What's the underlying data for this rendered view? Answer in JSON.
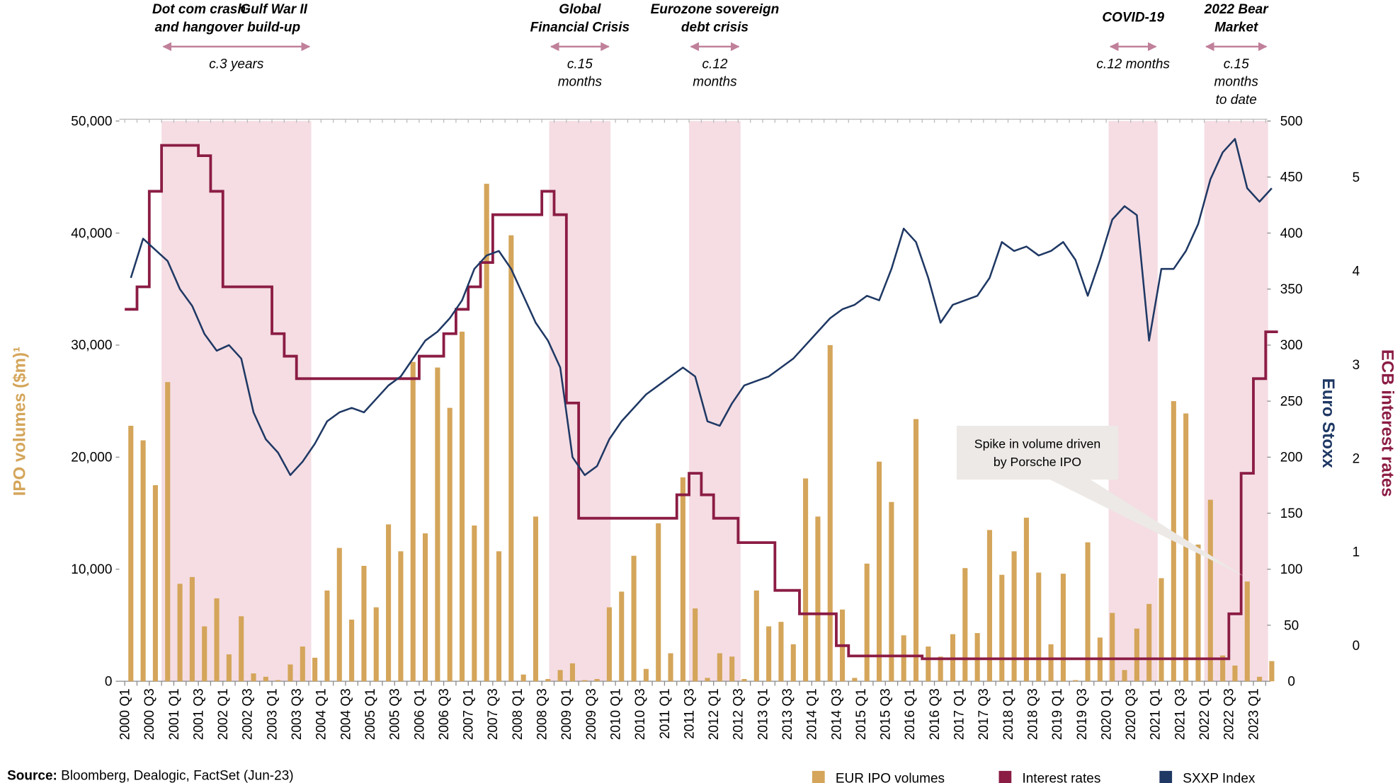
{
  "chart_data": {
    "type": "bar",
    "categories": [
      "2000 Q1",
      null,
      "2000 Q3",
      null,
      "2001 Q1",
      null,
      "2001 Q3",
      null,
      "2002 Q1",
      null,
      "2002 Q3",
      null,
      "2003 Q1",
      null,
      "2003 Q3",
      null,
      "2004 Q1",
      null,
      "2004 Q3",
      null,
      "2005 Q1",
      null,
      "2005 Q3",
      null,
      "2006 Q1",
      null,
      "2006 Q3",
      null,
      "2007 Q1",
      null,
      "2007 Q3",
      null,
      "2008 Q1",
      null,
      "2008 Q3",
      null,
      "2009 Q1",
      null,
      "2009 Q3",
      null,
      "2010 Q1",
      null,
      "2010 Q3",
      null,
      "2011 Q1",
      null,
      "2011 Q3",
      null,
      "2012 Q1",
      null,
      "2012 Q3",
      null,
      "2013 Q1",
      null,
      "2013 Q3",
      null,
      "2014 Q1",
      null,
      "2014 Q3",
      null,
      "2015 Q1",
      null,
      "2015 Q3",
      null,
      "2016 Q1",
      null,
      "2016 Q3",
      null,
      "2017 Q1",
      null,
      "2017 Q3",
      null,
      "2018 Q1",
      null,
      "2018 Q3",
      null,
      "2019 Q1",
      null,
      "2019 Q3",
      null,
      "2020 Q1",
      null,
      "2020 Q3",
      null,
      "2021 Q1",
      null,
      "2021 Q3",
      null,
      "2022 Q1",
      null,
      "2022 Q3",
      null,
      "2023 Q1",
      null
    ],
    "series": [
      {
        "name": "EUR IPO volumes",
        "color": "#d4a55a",
        "axis": "y",
        "values": [
          22800,
          21500,
          17500,
          26700,
          8700,
          9300,
          4900,
          7400,
          2400,
          5800,
          700,
          400,
          100,
          1500,
          3100,
          2100,
          8100,
          11900,
          5500,
          10300,
          6600,
          14000,
          11600,
          28500,
          13200,
          28000,
          24400,
          31200,
          13900,
          44400,
          11600,
          39800,
          600,
          14700,
          200,
          1000,
          1600,
          100,
          200,
          6600,
          8000,
          11200,
          1100,
          14100,
          2500,
          18200,
          6500,
          300,
          2500,
          2200,
          200,
          8100,
          4900,
          5300,
          3300,
          18100,
          14700,
          30000,
          6400,
          300,
          10500,
          19600,
          16000,
          4100,
          23400,
          3100,
          2200,
          4200,
          10100,
          4300,
          13500,
          9500,
          11600,
          14600,
          9700,
          3300,
          9600,
          100,
          12400,
          3900,
          6100,
          1000,
          4700,
          6900,
          9200,
          25000,
          23900,
          12200,
          16200,
          2300,
          1400,
          8900,
          400,
          1800
        ]
      },
      {
        "name": "Interest rates",
        "color": "#8b1c44",
        "axis": "y3",
        "values": [
          3.59,
          3.83,
          4.85,
          5.34,
          5.34,
          5.34,
          5.23,
          4.85,
          3.83,
          3.83,
          3.83,
          3.83,
          3.33,
          3.09,
          2.85,
          2.85,
          2.85,
          2.85,
          2.85,
          2.85,
          2.85,
          2.85,
          2.85,
          2.85,
          3.09,
          3.09,
          3.33,
          3.59,
          3.83,
          4.09,
          4.6,
          4.6,
          4.6,
          4.6,
          4.85,
          4.6,
          2.59,
          1.36,
          1.36,
          1.36,
          1.36,
          1.36,
          1.36,
          1.36,
          1.36,
          1.61,
          1.84,
          1.61,
          1.36,
          1.36,
          1.1,
          1.1,
          1.1,
          0.59,
          0.59,
          0.34,
          0.34,
          0.34,
          0,
          -0.11,
          -0.11,
          -0.11,
          -0.11,
          -0.11,
          -0.11,
          -0.14,
          -0.14,
          -0.14,
          -0.14,
          -0.14,
          -0.14,
          -0.14,
          -0.14,
          -0.14,
          -0.14,
          -0.14,
          -0.14,
          -0.14,
          -0.14,
          -0.14,
          -0.14,
          -0.14,
          -0.14,
          -0.14,
          -0.14,
          -0.14,
          -0.14,
          -0.14,
          -0.14,
          -0.14,
          0.34,
          1.84,
          2.85,
          3.35
        ]
      },
      {
        "name": "SXXP Index",
        "color": "#1f3864",
        "axis": "y2",
        "values": [
          360,
          395,
          385,
          375,
          350,
          335,
          310,
          295,
          300,
          288,
          240,
          216,
          204,
          184,
          196,
          212,
          232,
          240,
          244,
          240,
          252,
          264,
          272,
          288,
          304,
          312,
          324,
          340,
          368,
          380,
          384,
          368,
          344,
          320,
          304,
          280,
          200,
          184,
          192,
          216,
          232,
          244,
          256,
          264,
          272,
          280,
          272,
          232,
          228,
          248,
          264,
          268,
          272,
          280,
          288,
          300,
          312,
          324,
          332,
          336,
          344,
          340,
          368,
          404,
          392,
          360,
          320,
          336,
          340,
          344,
          360,
          392,
          384,
          388,
          380,
          384,
          392,
          376,
          344,
          376,
          412,
          424,
          416,
          304,
          368,
          368,
          384,
          408,
          448,
          472,
          484,
          440,
          428,
          440
        ]
      }
    ],
    "y_label": "IPO volumes ($m)¹",
    "y2_label": "Euro Stoxx",
    "y3_label": "ECB interest rates",
    "ylim": [
      0,
      50000
    ],
    "yticks": [
      0,
      {
        "value": 10000,
        "label": "10,000"
      },
      {
        "value": 20000,
        "label": "20,000"
      },
      {
        "value": 30000,
        "label": "30,000"
      },
      {
        "value": 40000,
        "label": "40,000"
      },
      {
        "value": 50000,
        "label": "50,000"
      }
    ],
    "y2lim": [
      0,
      500
    ],
    "y2ticks": [
      0,
      50,
      100,
      150,
      200,
      250,
      300,
      350,
      400,
      450,
      500
    ],
    "y3lim": [
      -0.38,
      5.6
    ],
    "y3ticks": [
      0,
      1,
      2,
      3,
      4,
      5
    ],
    "shade_color": "#f5dde3",
    "arrow_color": "#c0809a",
    "annotations": [
      {
        "titles": [
          [
            "Dot com crash",
            "and hangover"
          ],
          [
            "Gulf War II",
            "build-up"
          ]
        ],
        "duration": [
          "c.3 years"
        ],
        "start": 2000.75,
        "end": 2003.8
      },
      {
        "titles": [
          [
            "Global",
            "Financial Crisis"
          ]
        ],
        "duration": [
          "c.15",
          "months"
        ],
        "start": 2008.65,
        "end": 2009.9
      },
      {
        "titles": [
          [
            "Eurozone sovereign",
            "debt crisis"
          ]
        ],
        "duration": [
          "c.12",
          "months"
        ],
        "start": 2011.5,
        "end": 2012.55
      },
      {
        "titles": [
          [
            "COVID-19"
          ]
        ],
        "duration": [
          "c.12 months"
        ],
        "start": 2020.05,
        "end": 2021.05
      },
      {
        "titles": [
          [
            "2022 Bear",
            "Market"
          ]
        ],
        "duration": [
          "c.15",
          "months",
          "to date"
        ],
        "start": 2022.0,
        "end": 2023.3
      }
    ],
    "callout": [
      "Spike in volume driven",
      "by Porsche IPO"
    ],
    "source_label": "Source:",
    "source": "Bloomberg, Dealogic, FactSet (Jun-23)"
  }
}
